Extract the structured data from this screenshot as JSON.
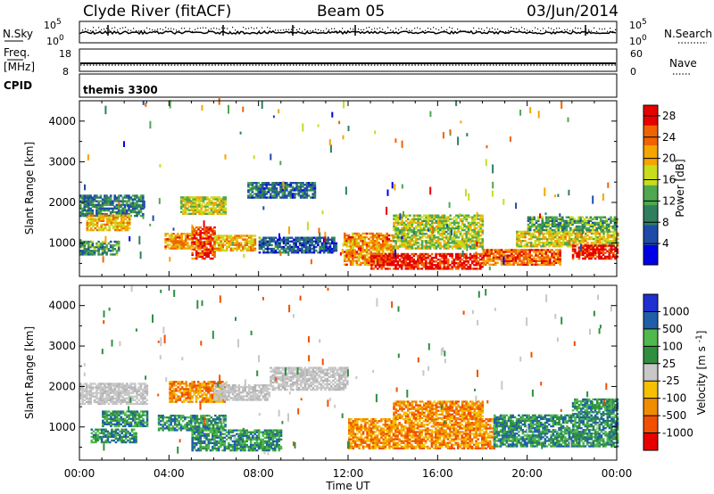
{
  "header": {
    "station": "Clyde River (fitACF)",
    "beam": "Beam 05",
    "date": "03/Jun/2014"
  },
  "status_panels": {
    "nsky_label": "N.Sky",
    "nsearch_label": "N.Search",
    "nsky_ticks": [
      "10^5",
      "10^0"
    ],
    "nsearch_ticks": [
      "10^5",
      "10^0"
    ],
    "freq_label": "Freq.",
    "freq_unit": "[MHz]",
    "freq_ticks": [
      "18",
      "8"
    ],
    "nave_label": "Nave",
    "nave_ticks": [
      "60",
      "0"
    ],
    "cpid_label": "CPID",
    "cpid_value": "themis 3300"
  },
  "colors": {
    "power_scale": [
      "#0000e6",
      "#1f4aa8",
      "#2f7f5f",
      "#4fa84f",
      "#c8dc1e",
      "#f5a500",
      "#f06400",
      "#e60000"
    ],
    "velocity_scale": [
      "#e60000",
      "#f05000",
      "#f08c00",
      "#f5c000",
      "#c8c8c8",
      "#2f8f3f",
      "#4fb84f",
      "#1f5fa8",
      "#1f2fd0"
    ]
  },
  "chart_data": [
    {
      "type": "heatmap",
      "name": "power",
      "ylabel": "Slant Range [km]",
      "xlabel": "Time UT",
      "x_ticks": [
        "00:00",
        "04:00",
        "08:00",
        "12:00",
        "16:00",
        "20:00",
        "00:00"
      ],
      "xlim_hours": [
        0,
        24
      ],
      "ylim_km": [
        180,
        4500
      ],
      "y_ticks": [
        "1000",
        "2000",
        "3000",
        "4000"
      ],
      "colorbar": {
        "label": "Power [dB]",
        "ticks": [
          "4",
          "8",
          "12",
          "16",
          "20",
          "24",
          "28"
        ],
        "range": [
          0,
          30
        ]
      },
      "regions": [
        {
          "t0": 0.0,
          "t1": 2.8,
          "r0": 1650,
          "r1": 2150,
          "value": 9
        },
        {
          "t0": 0.3,
          "t1": 2.2,
          "r0": 1300,
          "r1": 1700,
          "value": 20
        },
        {
          "t0": 0.0,
          "t1": 1.8,
          "r0": 700,
          "r1": 1050,
          "value": 11
        },
        {
          "t0": 3.8,
          "t1": 5.0,
          "r0": 850,
          "r1": 1250,
          "value": 22
        },
        {
          "t0": 5.0,
          "t1": 6.0,
          "r0": 600,
          "r1": 1400,
          "value": 26
        },
        {
          "t0": 6.0,
          "t1": 7.8,
          "r0": 800,
          "r1": 1200,
          "value": 20
        },
        {
          "t0": 4.5,
          "t1": 6.5,
          "r0": 1700,
          "r1": 2150,
          "value": 17
        },
        {
          "t0": 7.5,
          "t1": 10.5,
          "r0": 2100,
          "r1": 2500,
          "value": 8
        },
        {
          "t0": 8.0,
          "t1": 11.5,
          "r0": 750,
          "r1": 1150,
          "value": 7
        },
        {
          "t0": 11.8,
          "t1": 14.0,
          "r0": 450,
          "r1": 1250,
          "value": 22
        },
        {
          "t0": 13.0,
          "t1": 18.0,
          "r0": 350,
          "r1": 750,
          "value": 28
        },
        {
          "t0": 14.0,
          "t1": 18.0,
          "r0": 850,
          "r1": 1700,
          "value": 16
        },
        {
          "t0": 18.0,
          "t1": 21.5,
          "r0": 450,
          "r1": 850,
          "value": 24
        },
        {
          "t0": 19.5,
          "t1": 24.0,
          "r0": 900,
          "r1": 1300,
          "value": 18
        },
        {
          "t0": 20.0,
          "t1": 24.0,
          "r0": 1300,
          "r1": 1650,
          "value": 12
        },
        {
          "t0": 22.0,
          "t1": 24.0,
          "r0": 600,
          "r1": 950,
          "value": 28
        }
      ]
    },
    {
      "type": "heatmap",
      "name": "velocity",
      "ylabel": "Slant Range [km]",
      "xlabel": "Time UT",
      "x_ticks": [
        "00:00",
        "04:00",
        "08:00",
        "12:00",
        "16:00",
        "20:00",
        "00:00"
      ],
      "xlim_hours": [
        0,
        24
      ],
      "ylim_km": [
        180,
        4500
      ],
      "y_ticks": [
        "1000",
        "2000",
        "3000",
        "4000"
      ],
      "colorbar": {
        "label": "Velocity [m s^-1]",
        "ticks": [
          "1000",
          "500",
          "100",
          "25",
          "-25",
          "-100",
          "-500",
          "-1000"
        ]
      },
      "regions": [
        {
          "t0": 0.0,
          "t1": 3.0,
          "r0": 1550,
          "r1": 2050,
          "value": "gray"
        },
        {
          "t0": 1.0,
          "t1": 3.0,
          "r0": 1000,
          "r1": 1400,
          "value": "green"
        },
        {
          "t0": 0.5,
          "t1": 2.5,
          "r0": 600,
          "r1": 950,
          "value": "green"
        },
        {
          "t0": 3.5,
          "t1": 6.5,
          "r0": 900,
          "r1": 1300,
          "value": "green"
        },
        {
          "t0": 4.0,
          "t1": 6.5,
          "r0": 1600,
          "r1": 2100,
          "value": "orange"
        },
        {
          "t0": 6.0,
          "t1": 8.5,
          "r0": 1650,
          "r1": 2050,
          "value": "gray"
        },
        {
          "t0": 8.5,
          "t1": 12.0,
          "r0": 1900,
          "r1": 2450,
          "value": "gray"
        },
        {
          "t0": 5.0,
          "t1": 9.0,
          "r0": 400,
          "r1": 900,
          "value": "green"
        },
        {
          "t0": 12.0,
          "t1": 18.5,
          "r0": 450,
          "r1": 1200,
          "value": "orange"
        },
        {
          "t0": 14.0,
          "t1": 18.0,
          "r0": 1200,
          "r1": 1650,
          "value": "orange"
        },
        {
          "t0": 18.5,
          "t1": 24.0,
          "r0": 500,
          "r1": 1300,
          "value": "green"
        },
        {
          "t0": 22.0,
          "t1": 24.0,
          "r0": 1300,
          "r1": 1700,
          "value": "green"
        }
      ]
    }
  ]
}
